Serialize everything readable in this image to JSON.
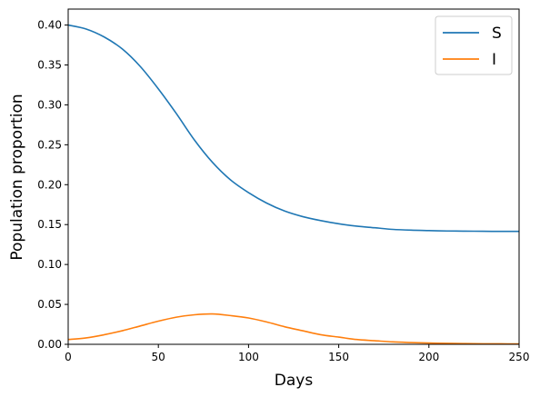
{
  "chart_data": {
    "type": "line",
    "xlabel": "Days",
    "ylabel": "Population proportion",
    "xlim": [
      0,
      250
    ],
    "ylim": [
      0,
      0.42
    ],
    "x_ticks": [
      0,
      50,
      100,
      150,
      200,
      250
    ],
    "x_tick_labels": [
      "0",
      "50",
      "100",
      "150",
      "200",
      "250"
    ],
    "y_ticks": [
      0,
      0.05,
      0.1,
      0.15,
      0.2,
      0.25,
      0.3,
      0.35,
      0.4
    ],
    "y_tick_labels": [
      "0.00",
      "0.05",
      "0.10",
      "0.15",
      "0.20",
      "0.25",
      "0.30",
      "0.35",
      "0.40"
    ],
    "grid": false,
    "legend_position": "top-right",
    "x": [
      0,
      10,
      20,
      30,
      40,
      50,
      60,
      70,
      80,
      90,
      100,
      110,
      120,
      130,
      140,
      150,
      160,
      170,
      180,
      190,
      200,
      210,
      220,
      230,
      240,
      250
    ],
    "series": [
      {
        "name": "S",
        "color": "#1f77b4",
        "values": [
          0.4,
          0.395,
          0.385,
          0.37,
          0.348,
          0.32,
          0.289,
          0.256,
          0.228,
          0.206,
          0.19,
          0.177,
          0.167,
          0.16,
          0.155,
          0.151,
          0.148,
          0.146,
          0.144,
          0.143,
          0.1425,
          0.142,
          0.1418,
          0.1416,
          0.1415,
          0.1415
        ]
      },
      {
        "name": "I",
        "color": "#ff7f0e",
        "values": [
          0.006,
          0.008,
          0.012,
          0.017,
          0.023,
          0.029,
          0.034,
          0.037,
          0.038,
          0.036,
          0.033,
          0.028,
          0.022,
          0.017,
          0.012,
          0.009,
          0.006,
          0.0045,
          0.003,
          0.0022,
          0.0016,
          0.0012,
          0.0009,
          0.0007,
          0.0006,
          0.0005
        ]
      }
    ]
  }
}
